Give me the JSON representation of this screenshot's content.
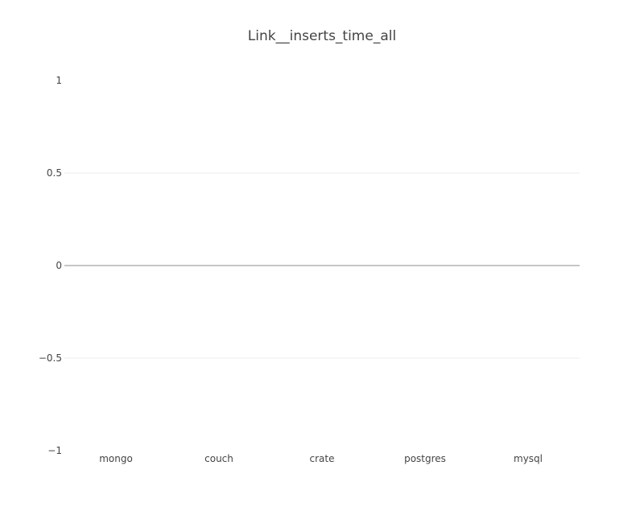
{
  "chart_data": {
    "type": "bar",
    "title": "Link__inserts_time_all",
    "xlabel": "",
    "ylabel": "",
    "categories": [
      "mongo",
      "couch",
      "crate",
      "postgres",
      "mysql"
    ],
    "values": [
      0,
      0,
      0,
      0,
      0
    ],
    "ylim": [
      -1,
      1
    ],
    "y_ticks": [
      1,
      0.5,
      0,
      -0.5,
      -1
    ],
    "y_tick_labels": [
      "1",
      "0.5",
      "0",
      "−0.5",
      "−1"
    ],
    "grid": true,
    "legend": "none"
  },
  "colors": {
    "background": "#ffffff",
    "text": "#444444",
    "grid": "#eeeeee",
    "zero_line": "#444444",
    "bar": "#1f77b4"
  }
}
